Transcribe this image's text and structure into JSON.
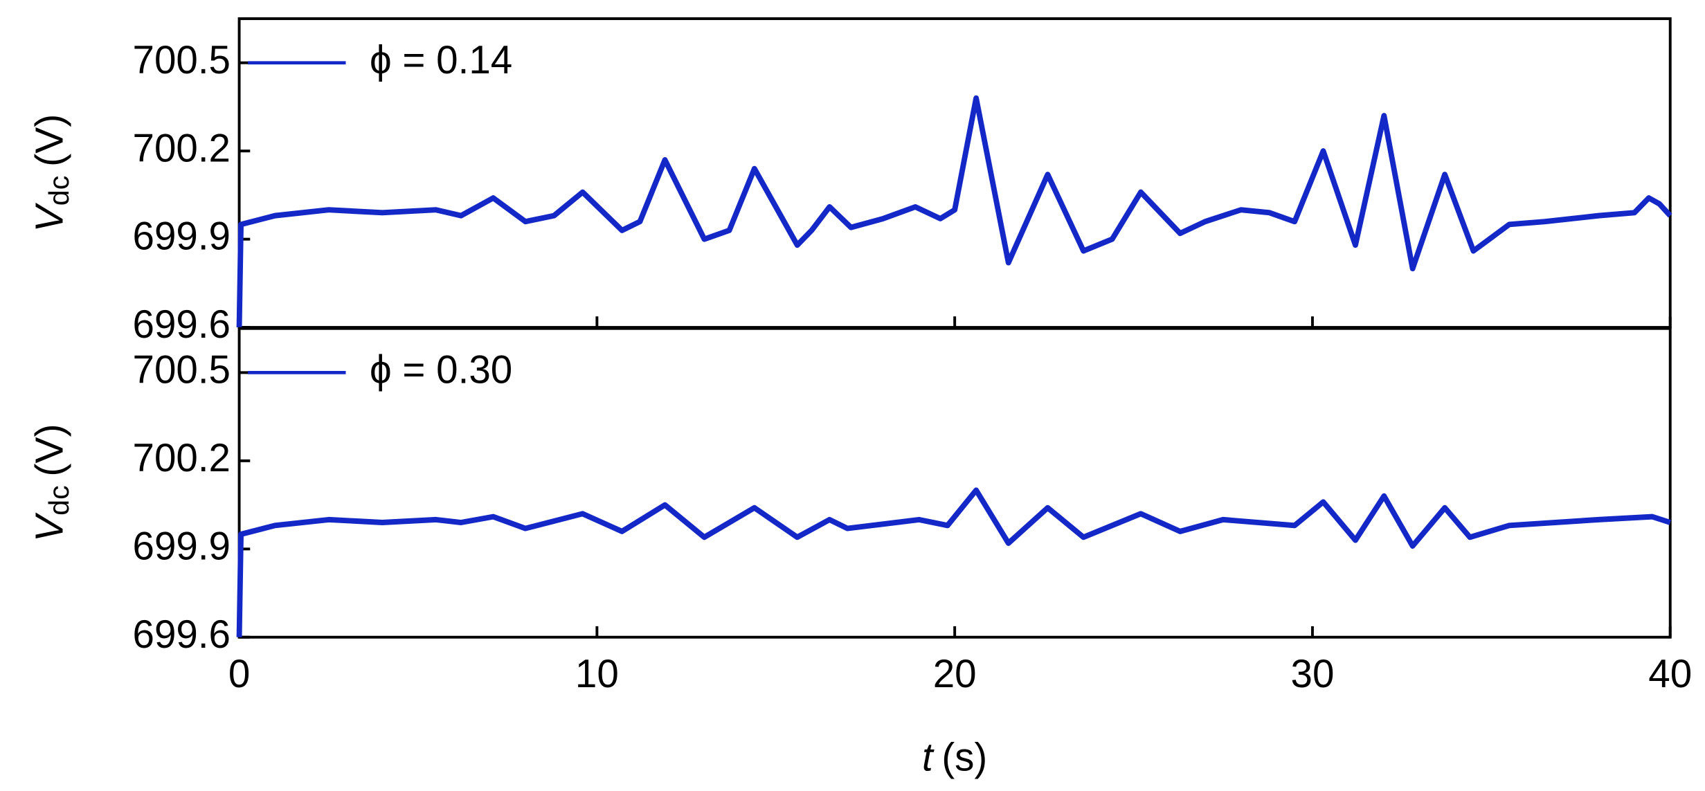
{
  "chart_data": [
    {
      "type": "line",
      "legend": "upper left",
      "ylabel": {
        "symbol": "V",
        "subscript": "dc",
        "unit": "(V)"
      },
      "xlim": [
        0,
        40
      ],
      "xticks": [
        0,
        10,
        20,
        30,
        40
      ],
      "ylim": [
        699.6,
        700.65
      ],
      "yticks": [
        699.6,
        699.9,
        700.2,
        700.5
      ],
      "x": [
        0,
        0.05,
        1,
        2.5,
        4,
        5.5,
        6.2,
        7.1,
        8,
        8.8,
        9.6,
        10.7,
        11.2,
        11.9,
        13,
        13.7,
        14.4,
        15.6,
        16,
        16.5,
        17.1,
        18,
        18.9,
        19.6,
        20,
        20.6,
        21.5,
        22.6,
        23.6,
        24.4,
        25.2,
        26.3,
        27,
        28,
        28.8,
        29.5,
        30.3,
        31.2,
        32,
        32.8,
        33.7,
        34.5,
        35.5,
        36.5,
        38,
        39,
        39.4,
        39.7,
        40
      ],
      "series": [
        {
          "name": "ϕ = 0.14",
          "color": "#1428c8",
          "values": [
            699.6,
            699.95,
            699.98,
            700.0,
            699.99,
            700.0,
            699.98,
            700.04,
            699.96,
            699.98,
            700.06,
            699.93,
            699.96,
            700.17,
            699.9,
            699.93,
            700.14,
            699.88,
            699.93,
            700.01,
            699.94,
            699.97,
            700.01,
            699.97,
            700.0,
            700.38,
            699.82,
            700.12,
            699.86,
            699.9,
            700.06,
            699.92,
            699.96,
            700.0,
            699.99,
            699.96,
            700.2,
            699.88,
            700.32,
            699.8,
            700.12,
            699.86,
            699.95,
            699.96,
            699.98,
            699.99,
            700.04,
            700.02,
            699.98
          ]
        }
      ]
    },
    {
      "type": "line",
      "legend": "upper left",
      "ylabel": {
        "symbol": "V",
        "subscript": "dc",
        "unit": "(V)"
      },
      "xlabel": {
        "symbol": "t",
        "unit": "(s)"
      },
      "xlim": [
        0,
        40
      ],
      "xticks": [
        0,
        10,
        20,
        30,
        40
      ],
      "ylim": [
        699.6,
        700.65
      ],
      "yticks": [
        699.6,
        699.9,
        700.2,
        700.5
      ],
      "x": [
        0,
        0.05,
        1,
        2.5,
        4,
        5.5,
        6.2,
        7.1,
        8,
        9.6,
        10.7,
        11.9,
        13,
        14.4,
        15.6,
        16.5,
        17,
        19,
        19.8,
        20.6,
        21.5,
        22.6,
        23.6,
        25.2,
        26.3,
        27.5,
        29.5,
        30.3,
        31.2,
        32,
        32.8,
        33.7,
        34.4,
        35.5,
        38,
        39.5,
        40
      ],
      "series": [
        {
          "name": "ϕ = 0.30",
          "color": "#1428c8",
          "values": [
            699.6,
            699.95,
            699.98,
            700.0,
            699.99,
            700.0,
            699.99,
            700.01,
            699.97,
            700.02,
            699.96,
            700.05,
            699.94,
            700.04,
            699.94,
            700.0,
            699.97,
            700.0,
            699.98,
            700.1,
            699.92,
            700.04,
            699.94,
            700.02,
            699.96,
            700.0,
            699.98,
            700.06,
            699.93,
            700.08,
            699.91,
            700.04,
            699.94,
            699.98,
            700.0,
            700.01,
            699.99
          ]
        }
      ]
    }
  ]
}
